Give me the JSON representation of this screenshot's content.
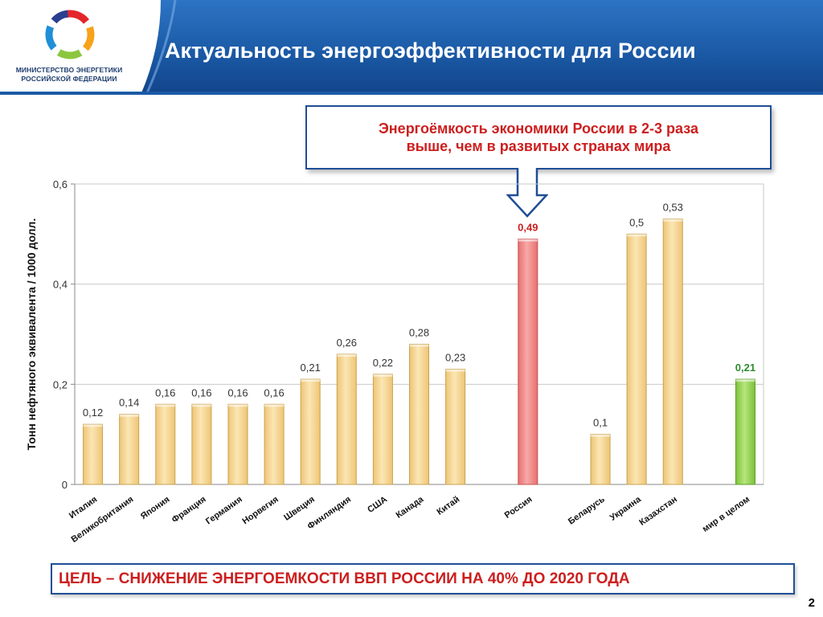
{
  "header": {
    "title": "Актуальность энергоэффективности для России",
    "ministry_line1": "МИНИСТЕРСТВО ЭНЕРГЕТИКИ",
    "ministry_line2": "РОССИЙСКОЙ ФЕДЕРАЦИИ"
  },
  "callout": {
    "line1": "Энергоёмкость экономики России в 2-3 раза",
    "line2": "выше, чем в развитых странах мира"
  },
  "goal": {
    "text": "ЦЕЛЬ – СНИЖЕНИЕ ЭНЕРГОЕМКОСТИ ВВП РОССИИ НА 40% ДО 2020 ГОДА"
  },
  "page_number": "2",
  "colors": {
    "header_blue": "#1d5aa5",
    "title_text": "#ffffff",
    "callout_border": "#1f4e96",
    "highlight_red": "#cc1f1f",
    "bar_default": "#f6d58c",
    "bar_russia": "#f08080",
    "bar_world": "#8fce4c",
    "label_world": "#2e8b2e"
  },
  "chart_data": {
    "type": "bar",
    "ylabel": "Тонн нефтяного эквивалента / 1000 долл.",
    "xlabel": "",
    "ylim": [
      0,
      0.6
    ],
    "yticks": [
      0,
      0.2,
      0.4,
      0.6
    ],
    "ytick_labels": [
      "0",
      "0,2",
      "0,4",
      "0,6"
    ],
    "grid": true,
    "categories": [
      "Италия",
      "Великобритания",
      "Япония",
      "Франция",
      "Германия",
      "Норвегия",
      "Швеция",
      "Финляндия",
      "США",
      "Канада",
      "Китай",
      "",
      "Россия",
      "",
      "Беларусь",
      "Украина",
      "Казахстан",
      "",
      "мир в целом"
    ],
    "values": [
      0.12,
      0.14,
      0.16,
      0.16,
      0.16,
      0.16,
      0.21,
      0.26,
      0.22,
      0.28,
      0.23,
      null,
      0.49,
      null,
      0.1,
      0.5,
      0.53,
      null,
      0.21
    ],
    "value_labels": [
      "0,12",
      "0,14",
      "0,16",
      "0,16",
      "0,16",
      "0,16",
      "0,21",
      "0,26",
      "0,22",
      "0,28",
      "0,23",
      "",
      "0,49",
      "",
      "0,1",
      "0,5",
      "0,53",
      "",
      "0,21"
    ],
    "highlight": {
      "Россия": "#f08080",
      "мир в целом": "#8fce4c"
    }
  }
}
